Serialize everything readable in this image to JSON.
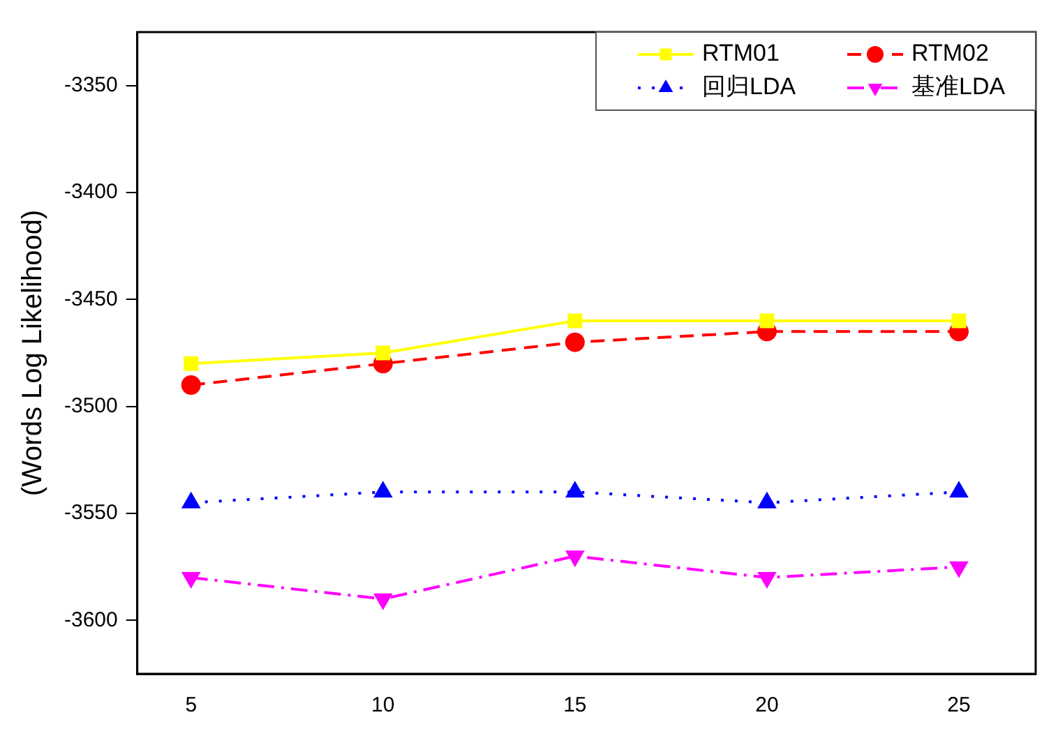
{
  "chart_data": {
    "type": "line",
    "ylabel": "(Words Log Likelihood)",
    "x": [
      5,
      10,
      15,
      20,
      25
    ],
    "xlim": [
      3.6,
      27
    ],
    "xticks": [
      5,
      10,
      15,
      20,
      25
    ],
    "ylim": [
      -3625,
      -3325
    ],
    "yticks": [
      -3350,
      -3400,
      -3450,
      -3500,
      -3550,
      -3600
    ],
    "grid": false,
    "legend": "top right",
    "series": [
      {
        "name": "RTM01",
        "color": "#ffff00",
        "marker": "square",
        "line_style": "solid",
        "values": [
          -3480,
          -3475,
          -3460,
          -3460,
          -3460
        ]
      },
      {
        "name": "RTM02",
        "color": "#ff0000",
        "marker": "circle",
        "line_style": "dashed",
        "values": [
          -3490,
          -3480,
          -3470,
          -3465,
          -3465
        ]
      },
      {
        "name": "回归LDA",
        "color": "#0000ff",
        "marker": "triangle",
        "line_style": "dotted",
        "values": [
          -3545,
          -3540,
          -3540,
          -3545,
          -3540
        ]
      },
      {
        "name": "基准LDA",
        "color": "#ff00ff",
        "marker": "triangle-down",
        "line_style": "dashdot",
        "values": [
          -3580,
          -3590,
          -3570,
          -3580,
          -3575
        ]
      }
    ]
  }
}
